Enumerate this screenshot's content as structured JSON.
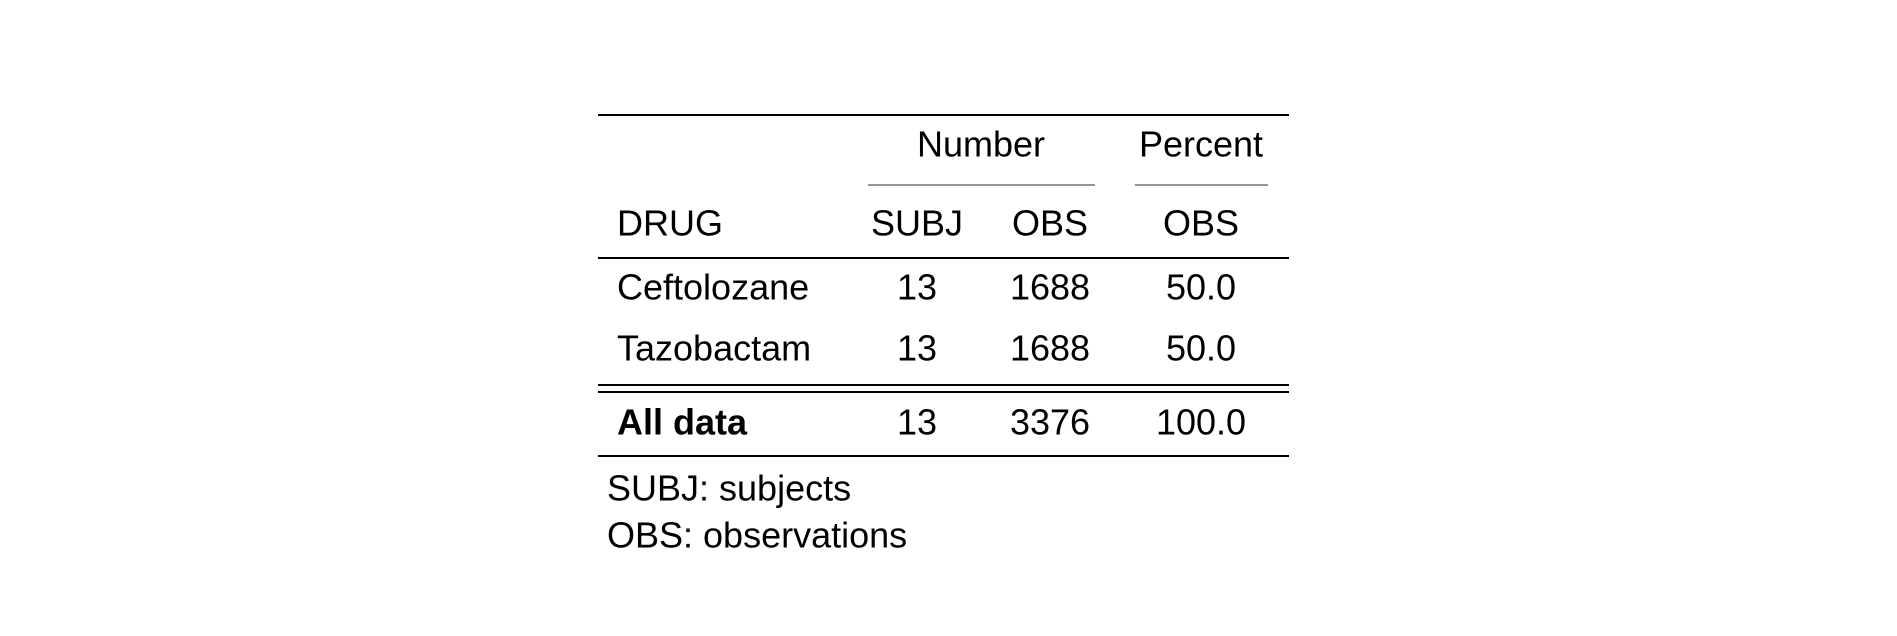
{
  "table": {
    "column_groups": [
      "Number",
      "Percent"
    ],
    "header": [
      "DRUG",
      "SUBJ",
      "OBS",
      "OBS"
    ],
    "rows": [
      [
        "Ceftolozane",
        "13",
        "1688",
        "50.0"
      ],
      [
        "Tazobactam",
        "13",
        "1688",
        "50.0"
      ]
    ],
    "total_row": [
      "All data",
      "13",
      "3376",
      "100.0"
    ],
    "footnotes": [
      "SUBJ: subjects",
      "OBS: observations"
    ]
  }
}
